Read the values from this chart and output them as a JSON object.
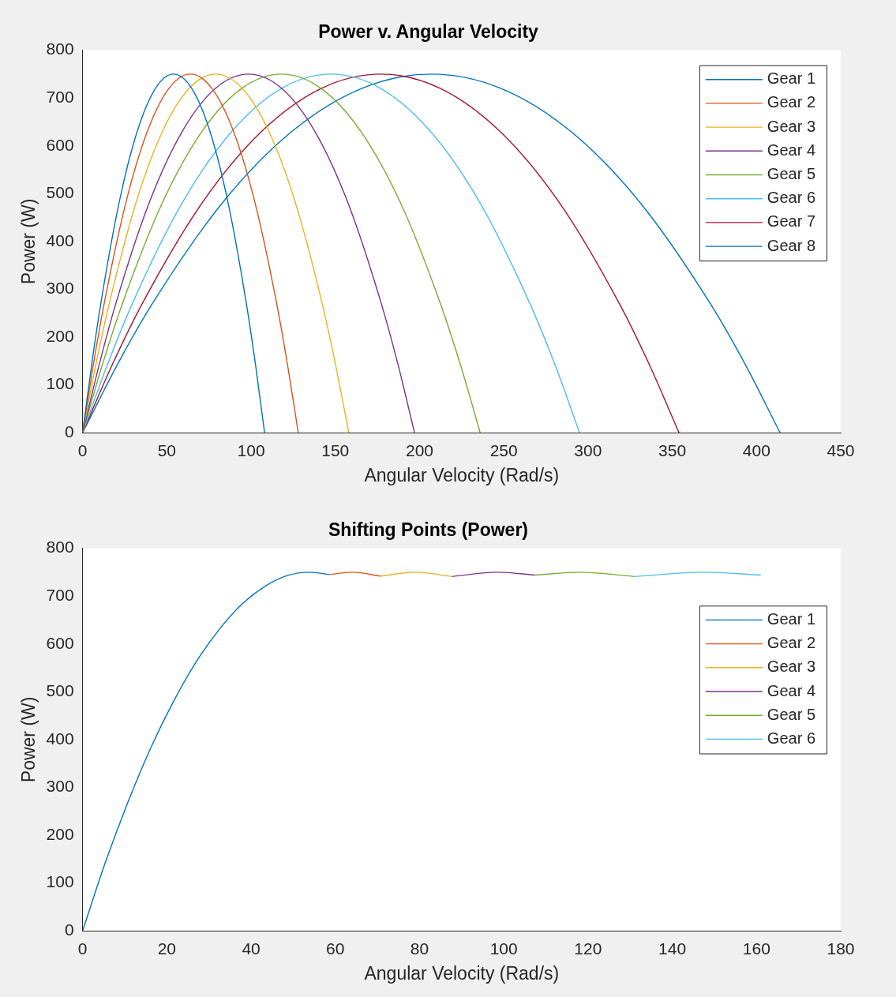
{
  "chart_data": [
    {
      "type": "line",
      "title": "Power v. Angular Velocity",
      "xlabel": "Angular Velocity (Rad/s)",
      "ylabel": "Power (W)",
      "xlim": [
        0,
        450
      ],
      "xticks": [
        0,
        50,
        100,
        150,
        200,
        250,
        300,
        350,
        400,
        450
      ],
      "ylim": [
        0,
        800
      ],
      "yticks": [
        0,
        100,
        200,
        300,
        400,
        500,
        600,
        700,
        800
      ],
      "grid": false,
      "legend": "top right",
      "marker": "none",
      "line_style": "solid",
      "series": [
        {
          "name": "Gear 1",
          "color": "#0072bd",
          "x": [
            0,
            5.4,
            10.8,
            21.6,
            32.4,
            43.2,
            54,
            64.8,
            75.6,
            86.4,
            97.2,
            102.6,
            108
          ],
          "values": [
            0,
            143,
            270,
            480,
            630,
            720,
            750,
            720,
            630,
            480,
            270,
            143,
            0
          ]
        },
        {
          "name": "Gear 2",
          "color": "#d95319",
          "x": [
            0,
            6.4,
            12.8,
            25.6,
            38.4,
            51.2,
            64,
            76.8,
            89.6,
            102.4,
            115.2,
            121.6,
            128
          ],
          "values": [
            0,
            143,
            270,
            480,
            630,
            720,
            750,
            720,
            630,
            480,
            270,
            143,
            0
          ]
        },
        {
          "name": "Gear 3",
          "color": "#edb120",
          "x": [
            0,
            7.9,
            15.8,
            31.6,
            47.4,
            63.2,
            79,
            94.8,
            110.6,
            126.4,
            142.2,
            150.1,
            158
          ],
          "values": [
            0,
            143,
            270,
            480,
            630,
            720,
            750,
            720,
            630,
            480,
            270,
            143,
            0
          ]
        },
        {
          "name": "Gear 4",
          "color": "#7e2f8e",
          "x": [
            0,
            9.9,
            19.7,
            39.4,
            59.1,
            78.8,
            98.5,
            118.2,
            137.9,
            157.6,
            177.3,
            187.2,
            197
          ],
          "values": [
            0,
            143,
            270,
            480,
            630,
            720,
            750,
            720,
            630,
            480,
            270,
            143,
            0
          ]
        },
        {
          "name": "Gear 5",
          "color": "#77ac30",
          "x": [
            0,
            11.8,
            23.6,
            47.2,
            70.8,
            94.4,
            118,
            141.6,
            165.2,
            188.8,
            212.4,
            224.2,
            236
          ],
          "values": [
            0,
            143,
            270,
            480,
            630,
            720,
            750,
            720,
            630,
            480,
            270,
            143,
            0
          ]
        },
        {
          "name": "Gear 6",
          "color": "#4dbeee",
          "x": [
            0,
            14.8,
            29.5,
            59,
            88.5,
            118,
            147.5,
            177,
            206.5,
            236,
            265.5,
            280.3,
            295
          ],
          "values": [
            0,
            143,
            270,
            480,
            630,
            720,
            750,
            720,
            630,
            480,
            270,
            143,
            0
          ]
        },
        {
          "name": "Gear 7",
          "color": "#a2142f",
          "x": [
            0,
            17.7,
            35.4,
            70.8,
            106.2,
            141.6,
            177,
            212.4,
            247.8,
            283.2,
            318.6,
            336.3,
            354
          ],
          "values": [
            0,
            143,
            270,
            480,
            630,
            720,
            750,
            720,
            630,
            480,
            270,
            143,
            0
          ]
        },
        {
          "name": "Gear 8",
          "color": "#0072bd",
          "x": [
            0,
            20.7,
            41.4,
            82.8,
            124.2,
            165.6,
            207,
            248.4,
            289.8,
            331.2,
            372.6,
            393.3,
            414
          ],
          "values": [
            0,
            143,
            270,
            480,
            630,
            720,
            750,
            720,
            630,
            480,
            270,
            143,
            0
          ]
        }
      ]
    },
    {
      "type": "line",
      "title": "Shifting Points (Power)",
      "xlabel": "Angular Velocity (Rad/s)",
      "ylabel": "Power (W)",
      "xlim": [
        0,
        180
      ],
      "xticks": [
        0,
        20,
        40,
        60,
        80,
        100,
        120,
        140,
        160,
        180
      ],
      "ylim": [
        0,
        800
      ],
      "yticks": [
        0,
        100,
        200,
        300,
        400,
        500,
        600,
        700,
        800
      ],
      "grid": false,
      "legend": "right",
      "marker": "none",
      "line_style": "solid",
      "series": [
        {
          "name": "Gear 1",
          "color": "#0072bd",
          "x": [
            0,
            5.4,
            10.8,
            16.2,
            21.6,
            27,
            32.4,
            37.8,
            43.2,
            48.6,
            54,
            58.6
          ],
          "values": [
            0,
            143,
            270,
            383,
            480,
            563,
            630,
            683,
            720,
            743,
            750,
            745
          ]
        },
        {
          "name": "Gear 2",
          "color": "#d95319",
          "x": [
            58.6,
            64,
            70.7
          ],
          "values": [
            745,
            750,
            742
          ]
        },
        {
          "name": "Gear 3",
          "color": "#edb120",
          "x": [
            70.7,
            79,
            87.7
          ],
          "values": [
            742,
            750,
            741
          ]
        },
        {
          "name": "Gear 4",
          "color": "#7e2f8e",
          "x": [
            87.7,
            98.5,
            107.4
          ],
          "values": [
            741,
            750,
            744
          ]
        },
        {
          "name": "Gear 5",
          "color": "#77ac30",
          "x": [
            107.4,
            118,
            131.1
          ],
          "values": [
            744,
            750,
            741
          ]
        },
        {
          "name": "Gear 6",
          "color": "#4dbeee",
          "x": [
            131.1,
            147.5,
            161
          ],
          "values": [
            741,
            750,
            744
          ]
        }
      ]
    }
  ]
}
